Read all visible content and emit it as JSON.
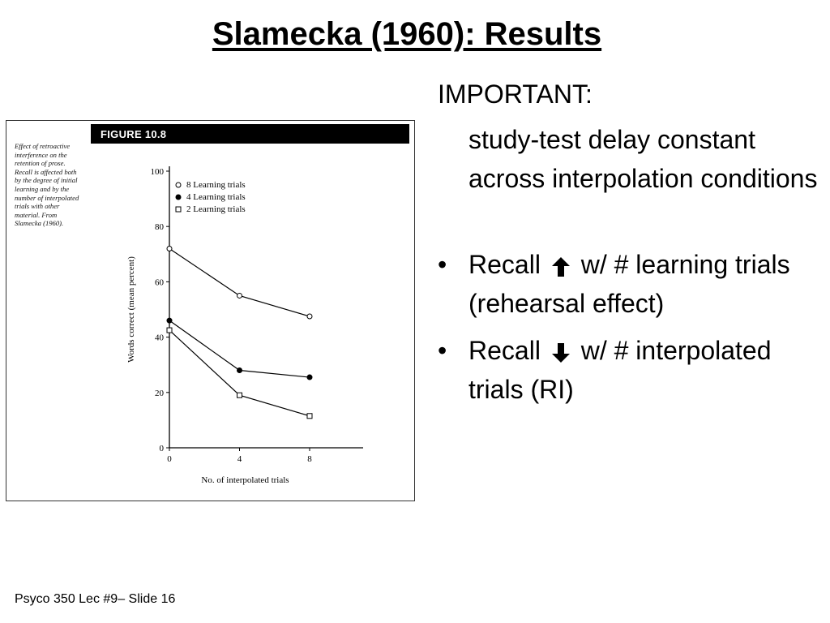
{
  "slide": {
    "title": "Slamecka (1960): Results",
    "footer": "Psyco 350 Lec #9– Slide 16"
  },
  "figure": {
    "banner": "FIGURE 10.8",
    "caption": "Effect of retroactive interference on the retention of prose. Recall is affected both by the degree of initial learning and by the number of interpolated trials with other material. From Slamecka (1960)."
  },
  "notes": {
    "heading": "IMPORTANT:",
    "sub": "study-test delay constant across interpolation conditions",
    "bullets": [
      {
        "before": "Recall",
        "arrow": "up-arrow-icon",
        "after": "w/ # learning trials (rehearsal effect)"
      },
      {
        "before": "Recall",
        "arrow": "down-arrow-icon",
        "after": "w/ # interpolated trials (RI)"
      }
    ],
    "bullet_char": "•"
  },
  "chart_data": {
    "type": "line",
    "xlabel": "No. of interpolated trials",
    "ylabel": "Words correct (mean percent)",
    "x": [
      0,
      4,
      8
    ],
    "xticks": [
      0,
      4,
      8
    ],
    "yticks": [
      0,
      20,
      40,
      60,
      80,
      100
    ],
    "xlim": [
      0,
      8
    ],
    "ylim": [
      0,
      100
    ],
    "legend_position": "top-left",
    "grid": false,
    "series": [
      {
        "name": "8 Learning trials",
        "marker": "open-circle",
        "values": [
          72,
          55,
          47.5
        ]
      },
      {
        "name": "4 Learning trials",
        "marker": "filled-circle",
        "values": [
          46,
          28,
          25.5
        ]
      },
      {
        "name": "2 Learning trials",
        "marker": "open-square",
        "values": [
          42.5,
          19,
          11.5
        ]
      }
    ]
  }
}
